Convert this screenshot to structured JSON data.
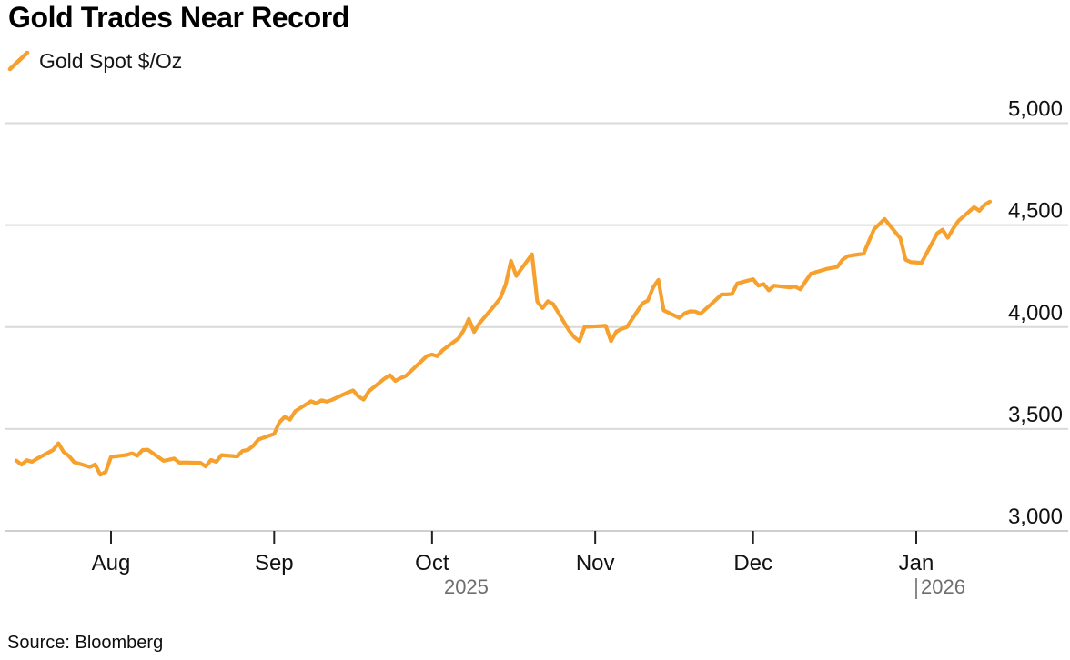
{
  "header": {
    "title": "Gold Trades Near Record"
  },
  "legend": {
    "label": "Gold Spot $/Oz",
    "marker_color": "#F6A02E"
  },
  "footer": {
    "source": "Source: Bloomberg"
  },
  "chart_data": {
    "type": "line",
    "title": "Gold Trades Near Record",
    "xlabel": "",
    "ylabel": "",
    "grid": true,
    "legend_position": "top-left",
    "background": "#ffffff",
    "gridline_color": "#D9D9D9",
    "ylim": [
      3000,
      5000
    ],
    "x_range": [
      "2025-07-14",
      "2026-01-15"
    ],
    "y_ticks": [
      {
        "value": 5000,
        "label": "5,000"
      },
      {
        "value": 4500,
        "label": "4,500"
      },
      {
        "value": 4000,
        "label": "4,000"
      },
      {
        "value": 3500,
        "label": "3,500"
      },
      {
        "value": 3000,
        "label": "3,000"
      }
    ],
    "x_ticks": [
      {
        "date": "2025-08-01",
        "label": "Aug"
      },
      {
        "date": "2025-09-01",
        "label": "Sep"
      },
      {
        "date": "2025-10-01",
        "label": "Oct"
      },
      {
        "date": "2025-11-01",
        "label": "Nov"
      },
      {
        "date": "2025-12-01",
        "label": "Dec"
      },
      {
        "date": "2026-01-01",
        "label": "Jan"
      }
    ],
    "year_labels": [
      {
        "text": "2025"
      },
      {
        "text": "2026"
      }
    ],
    "series": [
      {
        "name": "Gold Spot $/Oz",
        "color": "#F6A02E",
        "dates": [
          "2025-07-14",
          "2025-07-15",
          "2025-07-16",
          "2025-07-17",
          "2025-07-18",
          "2025-07-21",
          "2025-07-22",
          "2025-07-23",
          "2025-07-24",
          "2025-07-25",
          "2025-07-28",
          "2025-07-29",
          "2025-07-30",
          "2025-07-31",
          "2025-08-01",
          "2025-08-04",
          "2025-08-05",
          "2025-08-06",
          "2025-08-07",
          "2025-08-08",
          "2025-08-11",
          "2025-08-12",
          "2025-08-13",
          "2025-08-14",
          "2025-08-15",
          "2025-08-18",
          "2025-08-19",
          "2025-08-20",
          "2025-08-21",
          "2025-08-22",
          "2025-08-25",
          "2025-08-26",
          "2025-08-27",
          "2025-08-28",
          "2025-08-29",
          "2025-09-01",
          "2025-09-02",
          "2025-09-03",
          "2025-09-04",
          "2025-09-05",
          "2025-09-08",
          "2025-09-09",
          "2025-09-10",
          "2025-09-11",
          "2025-09-12",
          "2025-09-15",
          "2025-09-16",
          "2025-09-17",
          "2025-09-18",
          "2025-09-19",
          "2025-09-22",
          "2025-09-23",
          "2025-09-24",
          "2025-09-25",
          "2025-09-26",
          "2025-09-29",
          "2025-09-30",
          "2025-10-01",
          "2025-10-02",
          "2025-10-03",
          "2025-10-06",
          "2025-10-07",
          "2025-10-08",
          "2025-10-09",
          "2025-10-10",
          "2025-10-13",
          "2025-10-14",
          "2025-10-15",
          "2025-10-16",
          "2025-10-17",
          "2025-10-20",
          "2025-10-21",
          "2025-10-22",
          "2025-10-23",
          "2025-10-24",
          "2025-10-27",
          "2025-10-28",
          "2025-10-29",
          "2025-10-30",
          "2025-10-31",
          "2025-11-03",
          "2025-11-04",
          "2025-11-05",
          "2025-11-06",
          "2025-11-07",
          "2025-11-10",
          "2025-11-11",
          "2025-11-12",
          "2025-11-13",
          "2025-11-14",
          "2025-11-17",
          "2025-11-18",
          "2025-11-19",
          "2025-11-20",
          "2025-11-21",
          "2025-11-24",
          "2025-11-25",
          "2025-11-26",
          "2025-11-27",
          "2025-11-28",
          "2025-12-01",
          "2025-12-02",
          "2025-12-03",
          "2025-12-04",
          "2025-12-05",
          "2025-12-08",
          "2025-12-09",
          "2025-12-10",
          "2025-12-11",
          "2025-12-12",
          "2025-12-15",
          "2025-12-16",
          "2025-12-17",
          "2025-12-18",
          "2025-12-19",
          "2025-12-22",
          "2025-12-23",
          "2025-12-24",
          "2025-12-26",
          "2025-12-29",
          "2025-12-30",
          "2025-12-31",
          "2026-01-02",
          "2026-01-05",
          "2026-01-06",
          "2026-01-07",
          "2026-01-08",
          "2026-01-09",
          "2026-01-12",
          "2026-01-13",
          "2026-01-14",
          "2026-01-15"
        ],
        "values": [
          3345,
          3325,
          3347,
          3339,
          3355,
          3397,
          3430,
          3387,
          3368,
          3337,
          3314,
          3326,
          3275,
          3290,
          3363,
          3373,
          3381,
          3369,
          3397,
          3398,
          3344,
          3349,
          3355,
          3335,
          3336,
          3334,
          3316,
          3348,
          3339,
          3372,
          3365,
          3393,
          3397,
          3417,
          3448,
          3476,
          3533,
          3559,
          3546,
          3587,
          3636,
          3626,
          3641,
          3634,
          3643,
          3679,
          3689,
          3660,
          3644,
          3685,
          3748,
          3764,
          3736,
          3749,
          3760,
          3833,
          3858,
          3865,
          3857,
          3886,
          3944,
          3983,
          4040,
          3976,
          4018,
          4110,
          4143,
          4209,
          4325,
          4251,
          4357,
          4125,
          4093,
          4127,
          4113,
          3984,
          3951,
          3930,
          4001,
          4002,
          4006,
          3931,
          3977,
          3991,
          4000,
          4116,
          4130,
          4194,
          4231,
          4082,
          4045,
          4067,
          4077,
          4076,
          4065,
          4135,
          4160,
          4160,
          4162,
          4214,
          4235,
          4203,
          4211,
          4180,
          4203,
          4194,
          4198,
          4185,
          4225,
          4262,
          4285,
          4290,
          4295,
          4330,
          4348,
          4360,
          4420,
          4480,
          4530,
          4435,
          4330,
          4318,
          4315,
          4460,
          4478,
          4438,
          4482,
          4520,
          4588,
          4570,
          4600,
          4615
        ]
      }
    ]
  }
}
